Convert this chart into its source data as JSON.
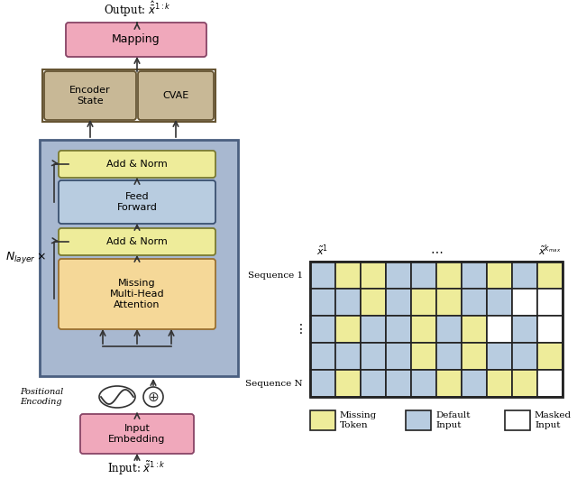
{
  "fig_width": 6.4,
  "fig_height": 5.51,
  "bg_color": "#ffffff",
  "colors": {
    "pink_box": "#f0a8bb",
    "tan_box": "#c8b896",
    "blue_outer": "#a8b8d0",
    "yellow_box": "#eeec9a",
    "light_blue_box": "#b8cce0",
    "peach_box": "#f5d898",
    "missing_token": "#eeec9a",
    "default_input": "#b8cce0",
    "masked_input": "#ffffff",
    "grid_border": "#222222",
    "arrow": "#333333"
  },
  "grid_pattern": [
    [
      "D",
      "M",
      "M",
      "D",
      "D",
      "M",
      "D",
      "M",
      "D",
      "M"
    ],
    [
      "D",
      "D",
      "M",
      "D",
      "M",
      "M",
      "D",
      "D",
      "W",
      "W"
    ],
    [
      "D",
      "M",
      "D",
      "D",
      "M",
      "D",
      "M",
      "W",
      "D",
      "W"
    ],
    [
      "D",
      "D",
      "D",
      "D",
      "M",
      "D",
      "M",
      "D",
      "D",
      "M"
    ],
    [
      "D",
      "M",
      "D",
      "D",
      "D",
      "M",
      "D",
      "M",
      "M",
      "W"
    ]
  ]
}
